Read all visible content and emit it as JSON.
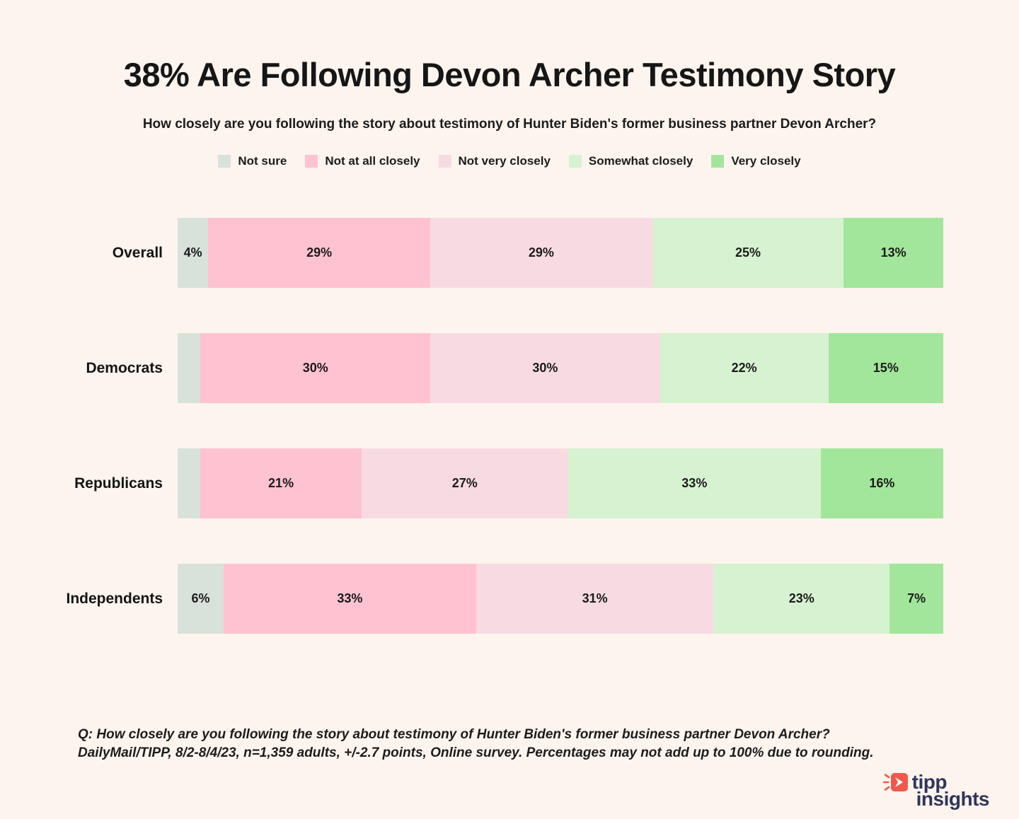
{
  "page": {
    "background": "#fdf4ee"
  },
  "header": {
    "title": "38% Are Following Devon Archer Testimony Story",
    "subtitle": "How closely are you following the story about testimony of Hunter Biden's former business partner Devon Archer?"
  },
  "legend": {
    "items": [
      {
        "label": "Not sure",
        "color": "#d8e2db"
      },
      {
        "label": "Not at all closely",
        "color": "#ffc2d0"
      },
      {
        "label": "Not very closely",
        "color": "#f8dbe2"
      },
      {
        "label": "Somewhat closely",
        "color": "#d7f2d1"
      },
      {
        "label": "Very closely",
        "color": "#a2e69b"
      }
    ]
  },
  "chart_data": {
    "type": "bar",
    "variant": "horizontal-stacked-100pct",
    "title": "38% Are Following Devon Archer Testimony Story",
    "xlabel": "",
    "ylabel": "",
    "xlim": [
      0,
      100
    ],
    "grid": false,
    "axes_visible": false,
    "legend_position": "top",
    "series_names": [
      "Not sure",
      "Not at all closely",
      "Not very closely",
      "Somewhat closely",
      "Very closely"
    ],
    "series_colors": [
      "#d8e2db",
      "#ffc2d0",
      "#f8dbe2",
      "#d7f2d1",
      "#a2e69b"
    ],
    "categories": [
      "Overall",
      "Democrats",
      "Republicans",
      "Independents"
    ],
    "rows": [
      {
        "category": "Overall",
        "values": [
          4,
          29,
          29,
          25,
          13
        ],
        "labels": [
          "4%",
          "29%",
          "29%",
          "25%",
          "13%"
        ]
      },
      {
        "category": "Democrats",
        "values": [
          3,
          30,
          30,
          22,
          15
        ],
        "labels": [
          "",
          "30%",
          "30%",
          "22%",
          "15%"
        ]
      },
      {
        "category": "Republicans",
        "values": [
          3,
          21,
          27,
          33,
          16
        ],
        "labels": [
          "",
          "21%",
          "27%",
          "33%",
          "16%"
        ]
      },
      {
        "category": "Independents",
        "values": [
          6,
          33,
          31,
          23,
          7
        ],
        "labels": [
          "6%",
          "33%",
          "31%",
          "23%",
          "7%"
        ]
      }
    ]
  },
  "footer": {
    "note": "Q: How closely are you following the story about testimony of Hunter Biden's former business partner Devon Archer? DailyMail/TIPP, 8/2-8/4/23, n=1,359 adults, +/-2.7 points, Online survey. Percentages may not add up to 100% due to rounding.",
    "logo": {
      "word_top": "tipp",
      "word_bottom": "insights",
      "icon_color": "#ed5a4c",
      "text_color": "#303659"
    }
  }
}
